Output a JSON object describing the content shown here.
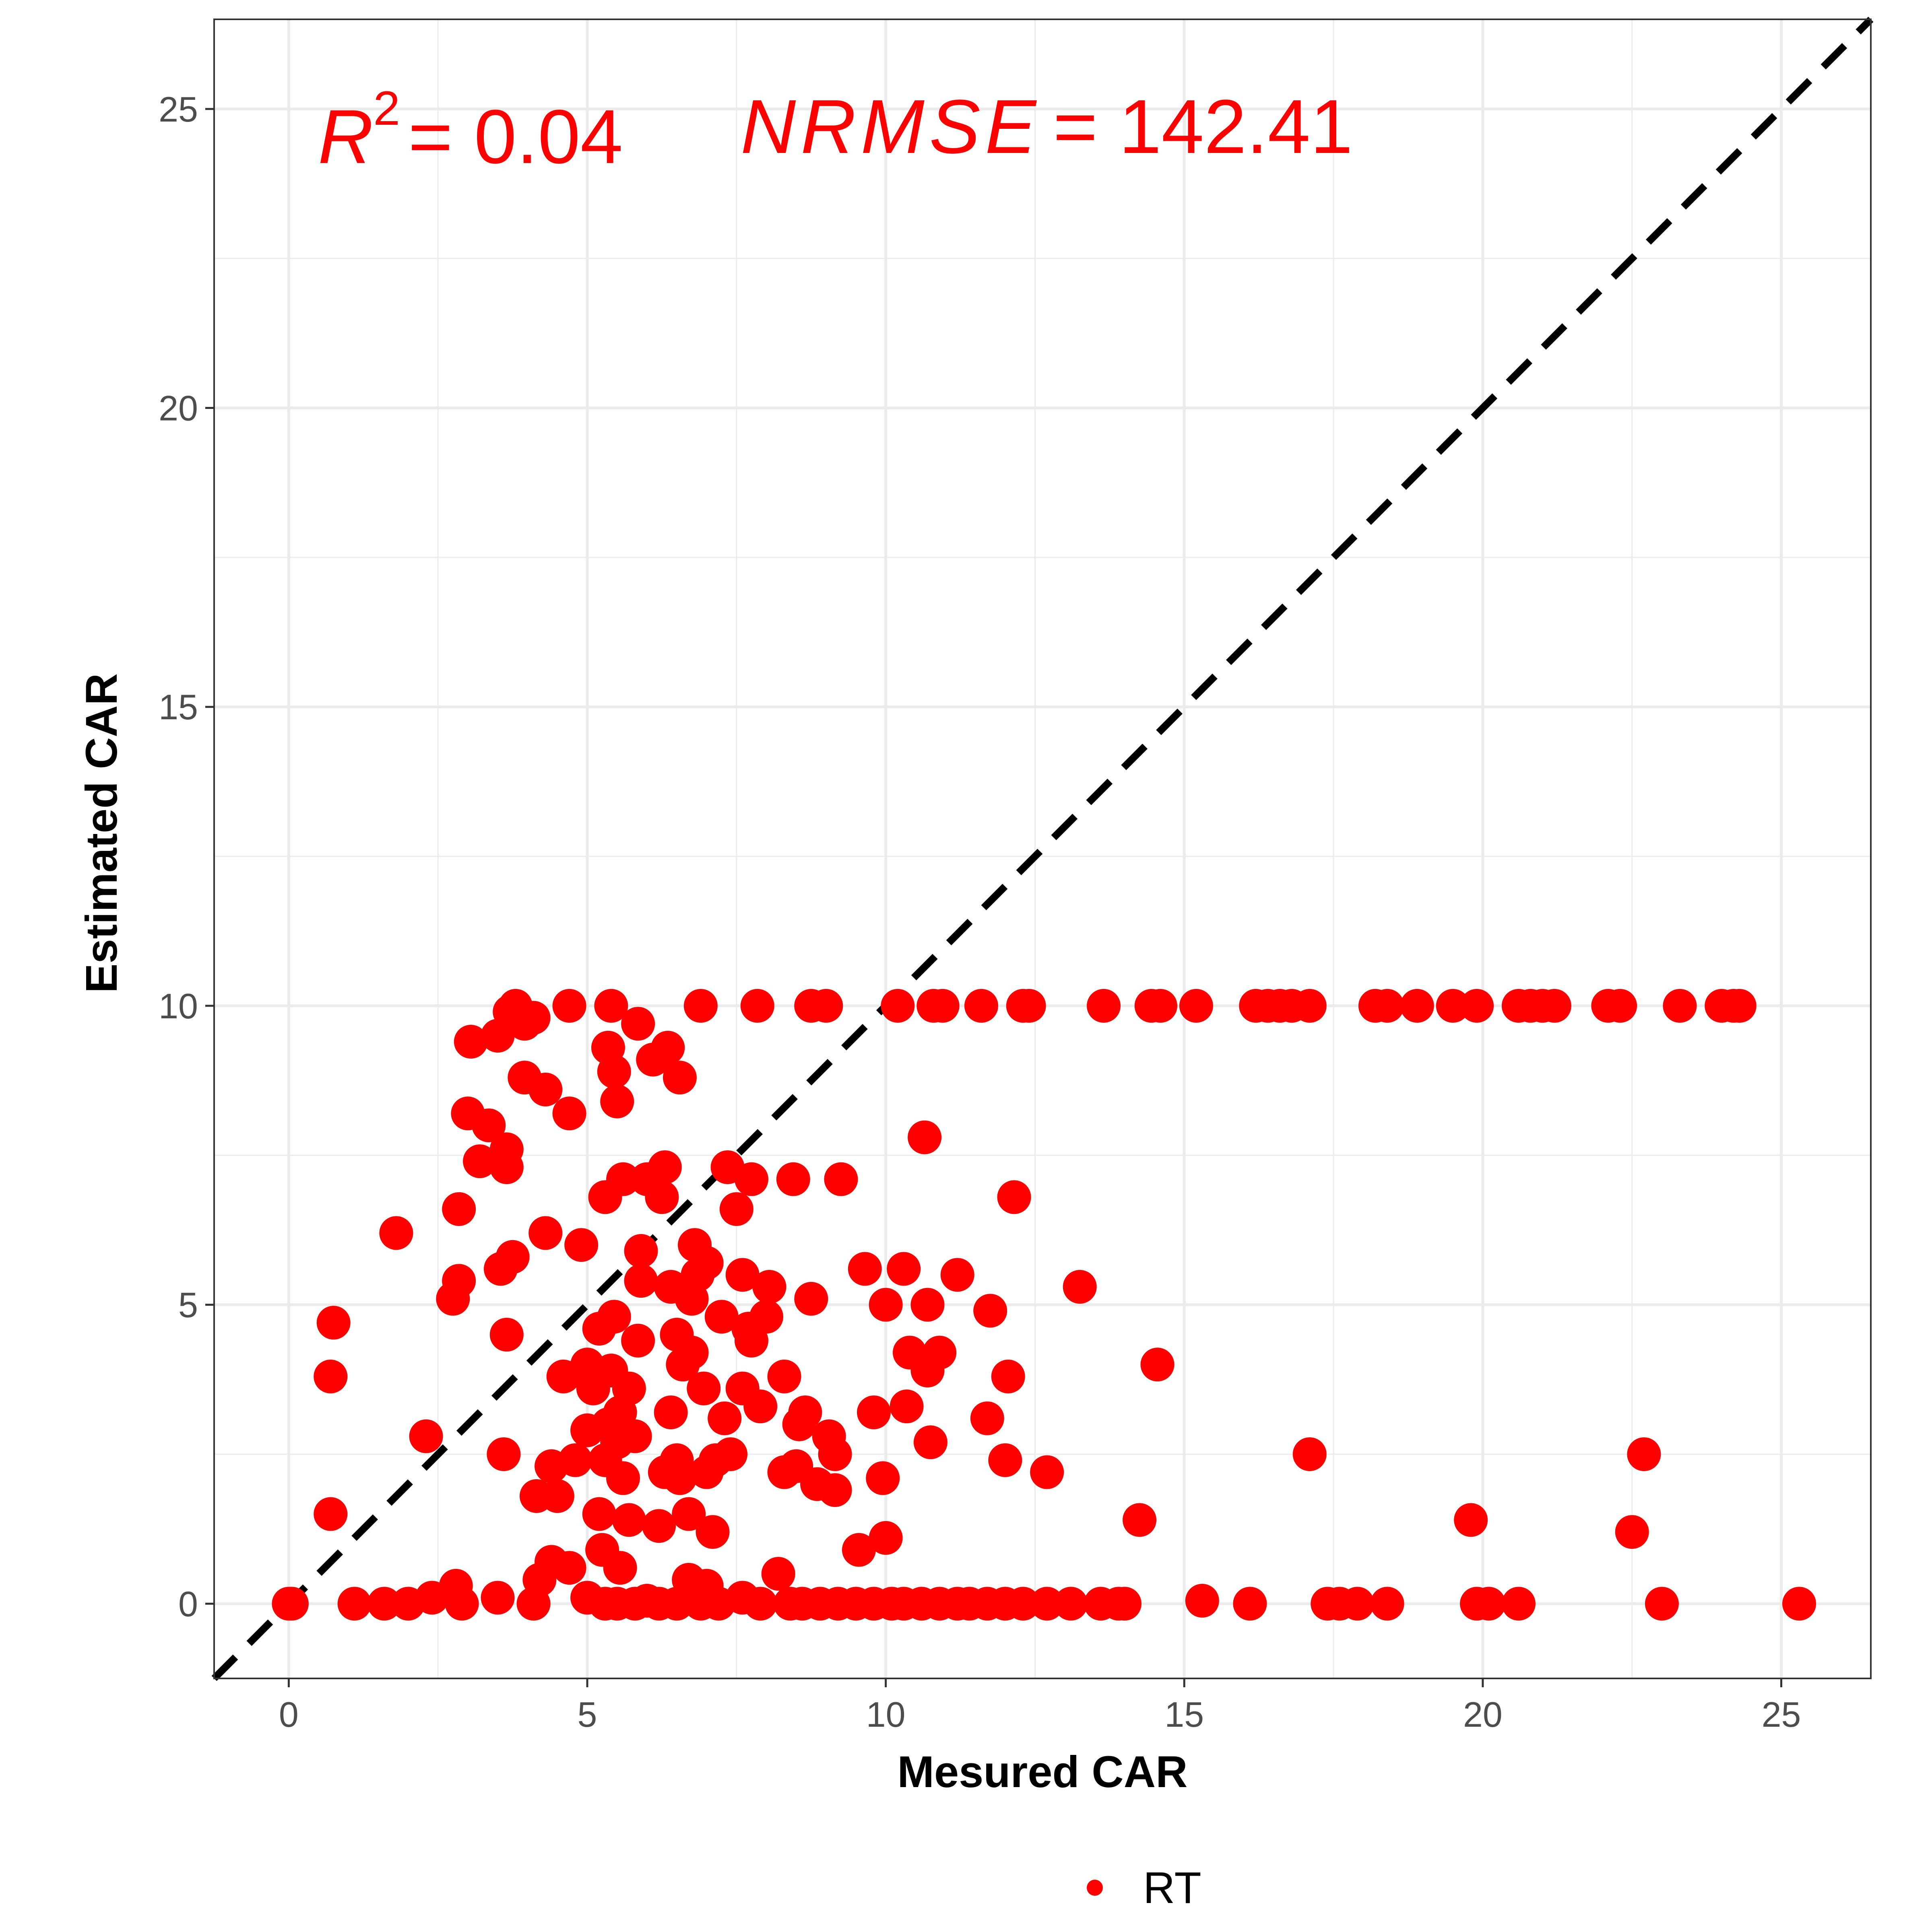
{
  "chart_data": {
    "type": "scatter",
    "xlabel": "Mesured CAR",
    "ylabel": "Estimated CAR",
    "xlim": [
      -1.25,
      26.5
    ],
    "ylim": [
      -1.25,
      26.5
    ],
    "x_ticks": [
      "0",
      "5",
      "10",
      "15",
      "20",
      "25"
    ],
    "y_ticks": [
      "0",
      "5",
      "10",
      "15",
      "20",
      "25"
    ],
    "grid": true,
    "reference_line": {
      "type": "identity",
      "style": "dashed",
      "color": "#000000"
    },
    "annotations": {
      "r2_symbol": "R",
      "r2_power": "2",
      "r2_value": "= 0.04",
      "nrmse_label": "NRMSE",
      "nrmse_value": "= 142.41",
      "color": "#ff0000"
    },
    "legend": {
      "position": "bottom",
      "entries": [
        {
          "name": "RT",
          "color": "#ff0000"
        }
      ]
    },
    "series": [
      {
        "name": "RT",
        "color": "#ff0000",
        "points": [
          [
            0.0,
            0.0
          ],
          [
            0.05,
            0.0
          ],
          [
            1.1,
            0.0
          ],
          [
            1.6,
            0.0
          ],
          [
            2.0,
            0.0
          ],
          [
            2.4,
            0.1
          ],
          [
            2.8,
            0.3
          ],
          [
            2.9,
            0.0
          ],
          [
            3.5,
            0.1
          ],
          [
            4.1,
            0.0
          ],
          [
            4.2,
            0.4
          ],
          [
            4.4,
            0.7
          ],
          [
            4.7,
            0.6
          ],
          [
            5.0,
            0.1
          ],
          [
            5.3,
            0.0
          ],
          [
            5.5,
            0.0
          ],
          [
            5.8,
            0.0
          ],
          [
            6.0,
            0.05
          ],
          [
            6.2,
            0.0
          ],
          [
            6.5,
            0.0
          ],
          [
            6.7,
            0.4
          ],
          [
            6.9,
            0.0
          ],
          [
            7.0,
            0.3
          ],
          [
            7.2,
            0.0
          ],
          [
            7.6,
            0.1
          ],
          [
            7.9,
            0.0
          ],
          [
            8.2,
            0.5
          ],
          [
            8.4,
            0.0
          ],
          [
            8.6,
            0.0
          ],
          [
            8.9,
            0.0
          ],
          [
            9.2,
            0.0
          ],
          [
            9.5,
            0.0
          ],
          [
            9.8,
            0.0
          ],
          [
            10.1,
            0.0
          ],
          [
            10.3,
            0.0
          ],
          [
            10.6,
            0.0
          ],
          [
            10.9,
            0.0
          ],
          [
            11.2,
            0.0
          ],
          [
            11.4,
            0.0
          ],
          [
            11.7,
            0.0
          ],
          [
            12.0,
            0.0
          ],
          [
            12.3,
            0.0
          ],
          [
            12.7,
            0.0
          ],
          [
            13.1,
            0.0
          ],
          [
            13.6,
            0.0
          ],
          [
            13.9,
            0.0
          ],
          [
            14.0,
            0.0
          ],
          [
            15.3,
            0.05
          ],
          [
            16.1,
            0.0
          ],
          [
            17.4,
            0.0
          ],
          [
            17.6,
            0.0
          ],
          [
            17.9,
            0.0
          ],
          [
            18.4,
            0.0
          ],
          [
            19.9,
            0.0
          ],
          [
            20.1,
            0.0
          ],
          [
            20.6,
            0.0
          ],
          [
            23.0,
            0.0
          ],
          [
            25.3,
            0.0
          ],
          [
            0.7,
            1.5
          ],
          [
            0.7,
            3.8
          ],
          [
            0.75,
            4.7
          ],
          [
            1.8,
            6.2
          ],
          [
            2.3,
            2.8
          ],
          [
            2.75,
            5.1
          ],
          [
            2.85,
            5.4
          ],
          [
            2.85,
            6.6
          ],
          [
            3.0,
            8.2
          ],
          [
            3.05,
            9.4
          ],
          [
            3.2,
            7.4
          ],
          [
            3.35,
            8.0
          ],
          [
            3.5,
            9.5
          ],
          [
            3.55,
            5.6
          ],
          [
            3.6,
            2.5
          ],
          [
            3.65,
            7.3
          ],
          [
            3.65,
            7.6
          ],
          [
            3.65,
            4.5
          ],
          [
            3.75,
            5.8
          ],
          [
            3.7,
            9.9
          ],
          [
            3.8,
            10.0
          ],
          [
            3.95,
            9.7
          ],
          [
            3.95,
            8.8
          ],
          [
            4.1,
            9.8
          ],
          [
            4.15,
            1.8
          ],
          [
            4.3,
            6.2
          ],
          [
            4.3,
            8.6
          ],
          [
            4.4,
            2.3
          ],
          [
            4.5,
            1.8
          ],
          [
            4.6,
            3.8
          ],
          [
            4.7,
            8.2
          ],
          [
            4.7,
            10.0
          ],
          [
            4.8,
            2.4
          ],
          [
            4.9,
            6.0
          ],
          [
            5.0,
            2.9
          ],
          [
            5.0,
            4.0
          ],
          [
            5.1,
            3.6
          ],
          [
            5.2,
            4.6
          ],
          [
            5.2,
            1.5
          ],
          [
            5.25,
            0.9
          ],
          [
            5.3,
            6.8
          ],
          [
            5.3,
            2.4
          ],
          [
            5.35,
            3.0
          ],
          [
            5.35,
            9.3
          ],
          [
            5.4,
            10.0
          ],
          [
            5.4,
            3.9
          ],
          [
            5.45,
            4.8
          ],
          [
            5.45,
            8.9
          ],
          [
            5.5,
            2.7
          ],
          [
            5.5,
            8.4
          ],
          [
            5.55,
            0.6
          ],
          [
            5.55,
            3.2
          ],
          [
            5.6,
            7.1
          ],
          [
            5.6,
            2.1
          ],
          [
            5.7,
            1.4
          ],
          [
            5.7,
            3.6
          ],
          [
            5.8,
            2.8
          ],
          [
            5.85,
            4.4
          ],
          [
            5.85,
            9.7
          ],
          [
            5.9,
            5.9
          ],
          [
            5.9,
            5.4
          ],
          [
            6.0,
            7.1
          ],
          [
            6.1,
            9.1
          ],
          [
            6.2,
            1.3
          ],
          [
            6.25,
            6.8
          ],
          [
            6.3,
            2.2
          ],
          [
            6.3,
            7.3
          ],
          [
            6.35,
            9.3
          ],
          [
            6.4,
            3.2
          ],
          [
            6.4,
            5.3
          ],
          [
            6.5,
            2.4
          ],
          [
            6.5,
            4.5
          ],
          [
            6.55,
            2.1
          ],
          [
            6.55,
            8.8
          ],
          [
            6.6,
            4.0
          ],
          [
            6.7,
            1.5
          ],
          [
            6.75,
            4.2
          ],
          [
            6.75,
            5.1
          ],
          [
            6.8,
            6.0
          ],
          [
            6.85,
            5.5
          ],
          [
            6.9,
            10.0
          ],
          [
            6.95,
            3.6
          ],
          [
            7.0,
            5.7
          ],
          [
            7.0,
            2.2
          ],
          [
            7.1,
            1.2
          ],
          [
            7.15,
            2.4
          ],
          [
            7.25,
            4.8
          ],
          [
            7.3,
            3.1
          ],
          [
            7.35,
            7.3
          ],
          [
            7.4,
            2.5
          ],
          [
            7.5,
            6.6
          ],
          [
            7.6,
            5.5
          ],
          [
            7.6,
            3.6
          ],
          [
            7.7,
            4.6
          ],
          [
            7.75,
            7.1
          ],
          [
            7.75,
            4.4
          ],
          [
            7.85,
            10.0
          ],
          [
            7.9,
            3.3
          ],
          [
            8.0,
            4.8
          ],
          [
            8.05,
            5.3
          ],
          [
            8.3,
            3.8
          ],
          [
            8.3,
            2.2
          ],
          [
            8.45,
            7.1
          ],
          [
            8.5,
            2.3
          ],
          [
            8.55,
            3.0
          ],
          [
            8.65,
            3.2
          ],
          [
            8.75,
            5.1
          ],
          [
            8.75,
            10.0
          ],
          [
            8.85,
            2.0
          ],
          [
            9.0,
            10.0
          ],
          [
            9.05,
            2.8
          ],
          [
            9.15,
            2.5
          ],
          [
            9.15,
            1.9
          ],
          [
            9.25,
            7.1
          ],
          [
            9.55,
            0.9
          ],
          [
            9.65,
            5.6
          ],
          [
            9.8,
            3.2
          ],
          [
            9.95,
            2.1
          ],
          [
            10.0,
            1.1
          ],
          [
            10.0,
            5.0
          ],
          [
            10.2,
            10.0
          ],
          [
            10.3,
            5.6
          ],
          [
            10.35,
            3.3
          ],
          [
            10.4,
            4.2
          ],
          [
            10.65,
            7.8
          ],
          [
            10.7,
            3.9
          ],
          [
            10.75,
            2.7
          ],
          [
            10.7,
            5.0
          ],
          [
            10.8,
            10.0
          ],
          [
            10.9,
            4.2
          ],
          [
            10.95,
            10.0
          ],
          [
            11.2,
            5.5
          ],
          [
            11.6,
            10.0
          ],
          [
            11.7,
            3.1
          ],
          [
            11.75,
            4.9
          ],
          [
            12.0,
            2.4
          ],
          [
            12.05,
            3.8
          ],
          [
            12.15,
            6.8
          ],
          [
            12.3,
            10.0
          ],
          [
            12.4,
            10.0
          ],
          [
            12.7,
            2.2
          ],
          [
            13.25,
            5.3
          ],
          [
            13.65,
            10.0
          ],
          [
            14.25,
            1.4
          ],
          [
            14.45,
            10.0
          ],
          [
            14.6,
            10.0
          ],
          [
            14.55,
            4.0
          ],
          [
            15.2,
            10.0
          ],
          [
            16.2,
            10.0
          ],
          [
            16.4,
            10.0
          ],
          [
            16.6,
            10.0
          ],
          [
            16.8,
            10.0
          ],
          [
            17.1,
            10.0
          ],
          [
            17.1,
            2.5
          ],
          [
            18.2,
            10.0
          ],
          [
            18.4,
            10.0
          ],
          [
            18.9,
            10.0
          ],
          [
            19.5,
            10.0
          ],
          [
            19.9,
            10.0
          ],
          [
            19.8,
            1.4
          ],
          [
            20.6,
            10.0
          ],
          [
            20.8,
            10.0
          ],
          [
            21.0,
            10.0
          ],
          [
            21.2,
            10.0
          ],
          [
            22.1,
            10.0
          ],
          [
            22.3,
            10.0
          ],
          [
            22.5,
            1.2
          ],
          [
            22.7,
            2.5
          ],
          [
            23.3,
            10.0
          ],
          [
            24.0,
            10.0
          ],
          [
            24.2,
            10.0
          ],
          [
            24.3,
            10.0
          ]
        ]
      }
    ]
  }
}
